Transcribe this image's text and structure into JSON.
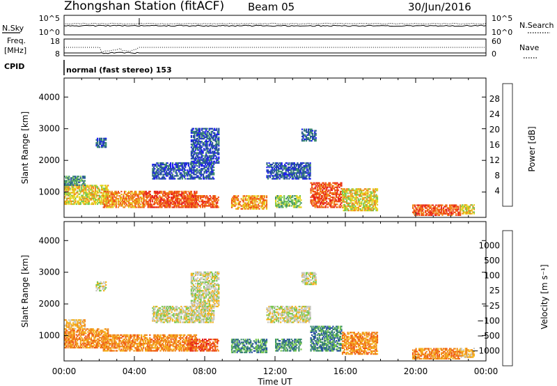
{
  "header": {
    "station": "Zhongshan Station (fitACF)",
    "beam": "Beam 05",
    "date": "30/Jun/2016"
  },
  "panel_labels": {
    "n_sky": "N.Sky",
    "n_search": "N.Search",
    "freq_line1": "Freq.",
    "freq_line2": "[MHz]",
    "nave": "Nave",
    "cpid": "CPID",
    "cpid_value": "normal (fast stereo) 153"
  },
  "chart_data": [
    {
      "type": "line",
      "panel": "noise",
      "left_ticks": [
        "10^5",
        "10^0"
      ],
      "right_ticks": [
        "10^5",
        "10^0"
      ],
      "left_label": "N.Sky",
      "right_label": "N.Search",
      "series": [
        {
          "name": "N.Sky",
          "style": "solid"
        },
        {
          "name": "N.Search",
          "style": "dotted"
        }
      ]
    },
    {
      "type": "line",
      "panel": "frequency",
      "left_ticks": [
        "18",
        "8"
      ],
      "right_ticks": [
        "60",
        "0"
      ],
      "left_label": "Freq. [MHz]",
      "right_label": "Nave",
      "series": [
        {
          "name": "Freq.",
          "style": "solid"
        },
        {
          "name": "Nave",
          "style": "dotted"
        }
      ]
    },
    {
      "type": "heatmap",
      "panel": "power",
      "ylabel": "Slant Range [km]",
      "yticks": [
        1000,
        2000,
        3000,
        4000
      ],
      "ylim": [
        200,
        4600
      ],
      "xlim_hours": [
        0,
        24
      ],
      "colorbar_label": "Power [dB]",
      "colorbar_ticks": [
        "4",
        "8",
        "12",
        "16",
        "20",
        "24",
        "28"
      ],
      "colors": [
        "#1e1ef0",
        "#2850a0",
        "#3c8c6e",
        "#78c850",
        "#e6d21e",
        "#f08c1e",
        "#f05014",
        "#e61e1e"
      ],
      "patches": [
        {
          "t0": 0.0,
          "t1": 2.5,
          "r0": 600,
          "r1": 1200,
          "lvl": 4
        },
        {
          "t0": 0.0,
          "t1": 1.2,
          "r0": 1200,
          "r1": 1500,
          "lvl": 2
        },
        {
          "t0": 2.2,
          "t1": 4.5,
          "r0": 500,
          "r1": 1000,
          "lvl": 5
        },
        {
          "t0": 4.5,
          "t1": 7.5,
          "r0": 500,
          "r1": 1000,
          "lvl": 6
        },
        {
          "t0": 7.0,
          "t1": 8.8,
          "r0": 500,
          "r1": 900,
          "lvl": 6
        },
        {
          "t0": 5.0,
          "t1": 8.5,
          "r0": 1400,
          "r1": 1900,
          "lvl": 1
        },
        {
          "t0": 7.2,
          "t1": 8.8,
          "r0": 1900,
          "r1": 3000,
          "lvl": 1
        },
        {
          "t0": 1.8,
          "t1": 2.4,
          "r0": 2400,
          "r1": 2700,
          "lvl": 1
        },
        {
          "t0": 9.5,
          "t1": 11.5,
          "r0": 450,
          "r1": 900,
          "lvl": 5
        },
        {
          "t0": 12.0,
          "t1": 13.5,
          "r0": 500,
          "r1": 900,
          "lvl": 3
        },
        {
          "t0": 11.5,
          "t1": 14.0,
          "r0": 1400,
          "r1": 1900,
          "lvl": 1
        },
        {
          "t0": 13.5,
          "t1": 14.3,
          "r0": 2600,
          "r1": 3000,
          "lvl": 1
        },
        {
          "t0": 14.0,
          "t1": 15.8,
          "r0": 500,
          "r1": 1300,
          "lvl": 6
        },
        {
          "t0": 15.8,
          "t1": 17.8,
          "r0": 400,
          "r1": 1100,
          "lvl": 4
        },
        {
          "t0": 19.8,
          "t1": 22.5,
          "r0": 250,
          "r1": 600,
          "lvl": 6
        },
        {
          "t0": 22.5,
          "t1": 23.3,
          "r0": 300,
          "r1": 600,
          "lvl": 4
        }
      ]
    },
    {
      "type": "heatmap",
      "panel": "velocity",
      "ylabel": "Slant Range [km]",
      "yticks": [
        1000,
        2000,
        3000,
        4000
      ],
      "ylim": [
        200,
        4600
      ],
      "xlim_hours": [
        0,
        24
      ],
      "xticks": [
        "00:00",
        "04:00",
        "08:00",
        "12:00",
        "16:00",
        "20:00",
        "00:00"
      ],
      "xlabel": "Time UT",
      "colorbar_label": "Velocity [m s⁻¹]",
      "colorbar_ticks": [
        "−1000",
        "−500",
        "−100",
        "−25",
        "25",
        "100",
        "500",
        "1000"
      ],
      "colors": [
        "#e61e1e",
        "#f05a14",
        "#f08c1e",
        "#f5b41e",
        "#c8c8c0",
        "#78c850",
        "#3c8c6e",
        "#2850a0",
        "#1e32c8"
      ],
      "patches": [
        {
          "t0": 0.0,
          "t1": 2.5,
          "r0": 600,
          "r1": 1200,
          "lvl": 2
        },
        {
          "t0": 0.0,
          "t1": 1.2,
          "r0": 1200,
          "r1": 1500,
          "lvl": 3
        },
        {
          "t0": 2.2,
          "t1": 7.5,
          "r0": 500,
          "r1": 1000,
          "lvl": 2
        },
        {
          "t0": 7.0,
          "t1": 8.8,
          "r0": 500,
          "r1": 900,
          "lvl": 1
        },
        {
          "t0": 5.0,
          "t1": 8.5,
          "r0": 1400,
          "r1": 1900,
          "lvl": 4
        },
        {
          "t0": 7.2,
          "t1": 8.8,
          "r0": 1900,
          "r1": 3000,
          "lvl": 4
        },
        {
          "t0": 1.8,
          "t1": 2.4,
          "r0": 2400,
          "r1": 2700,
          "lvl": 4
        },
        {
          "t0": 9.5,
          "t1": 11.5,
          "r0": 450,
          "r1": 900,
          "lvl": 6
        },
        {
          "t0": 12.0,
          "t1": 13.5,
          "r0": 500,
          "r1": 900,
          "lvl": 6
        },
        {
          "t0": 11.5,
          "t1": 14.0,
          "r0": 1400,
          "r1": 1900,
          "lvl": 4
        },
        {
          "t0": 13.5,
          "t1": 14.3,
          "r0": 2600,
          "r1": 3000,
          "lvl": 4
        },
        {
          "t0": 14.0,
          "t1": 15.8,
          "r0": 500,
          "r1": 1300,
          "lvl": 6
        },
        {
          "t0": 15.8,
          "t1": 17.8,
          "r0": 400,
          "r1": 1100,
          "lvl": 2
        },
        {
          "t0": 19.8,
          "t1": 22.5,
          "r0": 250,
          "r1": 600,
          "lvl": 2
        },
        {
          "t0": 22.5,
          "t1": 23.3,
          "r0": 300,
          "r1": 600,
          "lvl": 3
        }
      ]
    }
  ]
}
